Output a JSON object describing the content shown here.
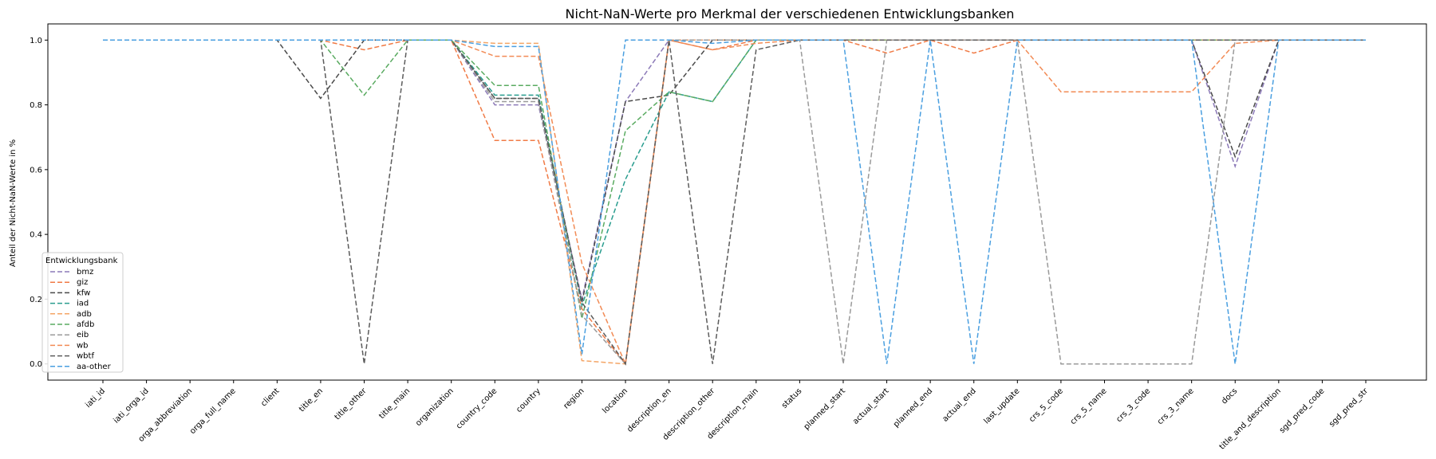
{
  "chart_data": {
    "type": "line",
    "title": "Nicht-NaN-Werte pro Merkmal der verschiedenen Entwicklungsbanken",
    "xlabel": "",
    "ylabel": "Anteil der Nicht-NaN-Werte in %",
    "ylim": [
      -0.05,
      1.05
    ],
    "yticks": [
      "0.0",
      "0.2",
      "0.4",
      "0.6",
      "0.8",
      "1.0"
    ],
    "line_style": "dashed",
    "legend": {
      "title": "Entwicklungsbank",
      "position": "lower-left"
    },
    "categories": [
      "iati_id",
      "iati_orga_id",
      "orga_abbreviation",
      "orga_full_name",
      "client",
      "title_en",
      "title_other",
      "title_main",
      "organization",
      "country_code",
      "country",
      "region",
      "location",
      "description_en",
      "description_other",
      "description_main",
      "status",
      "planned_start",
      "actual_start",
      "planned_end",
      "actual_end",
      "last_update",
      "crs_5_code",
      "crs_5_name",
      "crs_3_code",
      "crs_3_name",
      "docs",
      "title_and_description",
      "sgd_pred_code",
      "sgd_pred_str"
    ],
    "series": [
      {
        "name": "bmz",
        "color": "#8c7ab8",
        "values": [
          1,
          1,
          1,
          1,
          1,
          1,
          1,
          1,
          1,
          0.8,
          0.8,
          0.2,
          0.81,
          1.0,
          1.0,
          1.0,
          1.0,
          1.0,
          1.0,
          1.0,
          1.0,
          1.0,
          1.0,
          1.0,
          1.0,
          1.0,
          0.61,
          1.0,
          1.0,
          1.0
        ]
      },
      {
        "name": "giz",
        "color": "#f07a45",
        "values": [
          1,
          1,
          1,
          1,
          1,
          1,
          0.97,
          1,
          1,
          0.69,
          0.69,
          0.17,
          0.0,
          1.0,
          0.97,
          1.0,
          1.0,
          1.0,
          0.96,
          1.0,
          0.96,
          1.0,
          1.0,
          1.0,
          1.0,
          1.0,
          1.0,
          1.0,
          1.0,
          1.0
        ]
      },
      {
        "name": "kfw",
        "color": "#4a4a4a",
        "values": [
          1,
          1,
          1,
          1,
          1,
          0.82,
          1,
          1,
          1,
          0.82,
          0.82,
          0.19,
          0.81,
          0.83,
          1.0,
          1.0,
          1.0,
          1.0,
          1.0,
          1.0,
          1.0,
          1.0,
          1.0,
          1.0,
          1.0,
          1.0,
          0.64,
          1.0,
          1.0,
          1.0
        ]
      },
      {
        "name": "iad",
        "color": "#2a9d8f",
        "values": [
          1,
          1,
          1,
          1,
          1,
          1,
          1,
          1,
          1,
          0.83,
          0.83,
          0.18,
          0.57,
          0.84,
          0.81,
          1.0,
          1.0,
          1.0,
          1.0,
          1.0,
          1.0,
          1.0,
          1.0,
          1.0,
          1.0,
          1.0,
          1.0,
          1.0,
          1.0,
          1.0
        ]
      },
      {
        "name": "adb",
        "color": "#f4a566",
        "values": [
          1,
          1,
          1,
          1,
          1,
          1,
          1,
          1,
          1,
          0.99,
          0.99,
          0.01,
          0.0,
          1.0,
          1.0,
          1.0,
          1.0,
          1.0,
          1.0,
          1.0,
          1.0,
          1.0,
          1.0,
          1.0,
          1.0,
          1.0,
          1.0,
          1.0,
          1.0,
          1.0
        ]
      },
      {
        "name": "afdb",
        "color": "#5aab61",
        "values": [
          1,
          1,
          1,
          1,
          1,
          1,
          0.83,
          1,
          1,
          0.86,
          0.86,
          0.14,
          0.72,
          0.84,
          0.81,
          1.0,
          1.0,
          1.0,
          1.0,
          1.0,
          1.0,
          1.0,
          1.0,
          1.0,
          1.0,
          1.0,
          1.0,
          1.0,
          1.0,
          1.0
        ]
      },
      {
        "name": "eib",
        "color": "#9a9a9a",
        "values": [
          1,
          1,
          1,
          1,
          1,
          1,
          1,
          1,
          1,
          0.81,
          0.81,
          0.15,
          0.0,
          1.0,
          1.0,
          1.0,
          1.0,
          0.0,
          1.0,
          1.0,
          1.0,
          1.0,
          0.0,
          0.0,
          0.0,
          0.0,
          1.0,
          1.0,
          1.0,
          1.0
        ]
      },
      {
        "name": "wb",
        "color": "#f28b55",
        "values": [
          1,
          1,
          1,
          1,
          1,
          1,
          1,
          1,
          1,
          0.95,
          0.95,
          0.31,
          0.0,
          1.0,
          0.97,
          0.99,
          1.0,
          1.0,
          1.0,
          1.0,
          1.0,
          1.0,
          0.84,
          0.84,
          0.84,
          0.84,
          0.99,
          1.0,
          1.0,
          1.0
        ]
      },
      {
        "name": "wbtf",
        "color": "#5c5c5c",
        "values": [
          1,
          1,
          1,
          1,
          1,
          1,
          0.0,
          1,
          1,
          0.82,
          0.82,
          0.19,
          0.0,
          1.0,
          0.0,
          0.97,
          1.0,
          1.0,
          1.0,
          1.0,
          1.0,
          1.0,
          1.0,
          1.0,
          1.0,
          1.0,
          1.0,
          1.0,
          1.0,
          1.0
        ]
      },
      {
        "name": "aa-other",
        "color": "#4a9fe0",
        "values": [
          1,
          1,
          1,
          1,
          1,
          1,
          1,
          1,
          1,
          0.98,
          0.98,
          0.03,
          1.0,
          1.0,
          0.99,
          1.0,
          1.0,
          1.0,
          0.0,
          1.0,
          0.0,
          1.0,
          1.0,
          1.0,
          1.0,
          1.0,
          0.0,
          1.0,
          1.0,
          1.0
        ]
      }
    ]
  }
}
